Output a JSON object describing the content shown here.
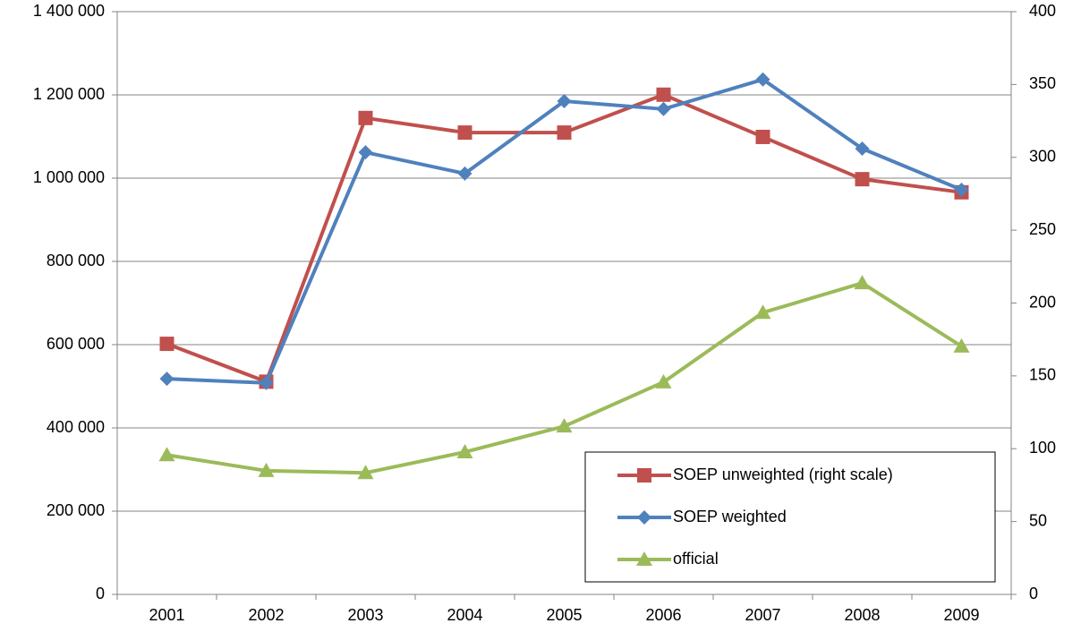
{
  "chart_data": {
    "type": "line",
    "categories": [
      "2001",
      "2002",
      "2003",
      "2004",
      "2005",
      "2006",
      "2007",
      "2008",
      "2009"
    ],
    "series": [
      {
        "name": "SOEP unweighted (right scale)",
        "color": "#c0504d",
        "marker": "square",
        "axis": "y2",
        "values": [
          172,
          146,
          327,
          317,
          317,
          343,
          314,
          285,
          276
        ]
      },
      {
        "name": "SOEP weighted",
        "color": "#4f81bd",
        "marker": "diamond",
        "values": [
          518000,
          508000,
          1062000,
          1011000,
          1185000,
          1166000,
          1237000,
          1071000,
          972000
        ]
      },
      {
        "name": "official",
        "color": "#9bbb59",
        "marker": "triangle",
        "values": [
          335000,
          297000,
          292000,
          342000,
          404000,
          510000,
          677000,
          748000,
          596000
        ]
      }
    ],
    "ylim": [
      0,
      1400000
    ],
    "yticks": [
      0,
      {
        "value": 200000,
        "label": "200 000"
      },
      {
        "value": 400000,
        "label": "400 000"
      },
      {
        "value": 600000,
        "label": "600 000"
      },
      {
        "value": 800000,
        "label": "800 000"
      },
      {
        "value": 1000000,
        "label": "1 000 000"
      },
      {
        "value": 1200000,
        "label": "1 200 000"
      },
      {
        "value": 1400000,
        "label": "1 400 000"
      }
    ],
    "y2lim": [
      0,
      400
    ],
    "y2ticks": [
      0,
      50,
      100,
      150,
      200,
      250,
      300,
      350,
      400
    ],
    "grid": true,
    "legend": "lower-right"
  }
}
